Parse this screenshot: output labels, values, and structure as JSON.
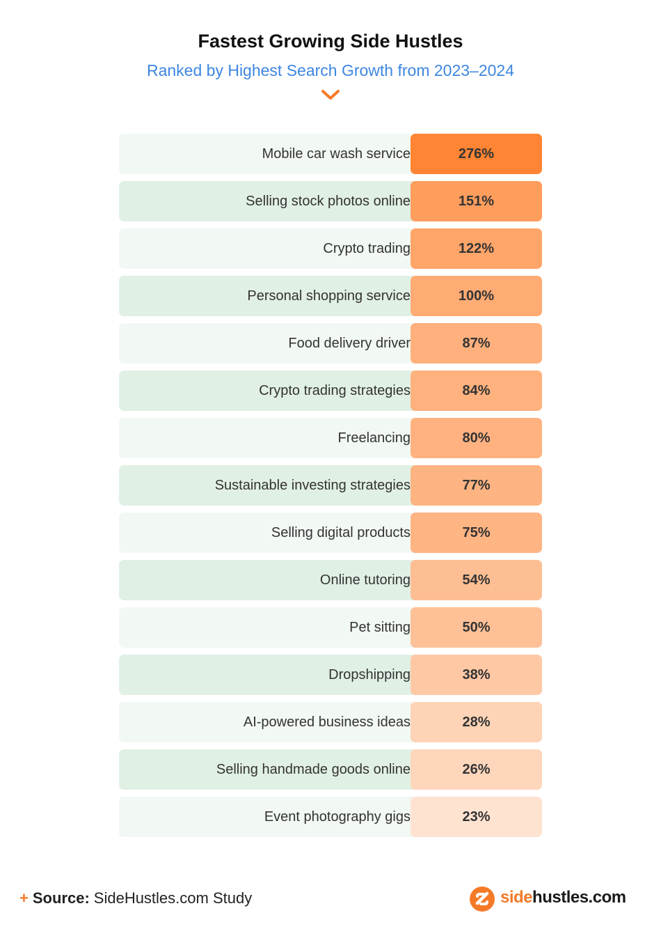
{
  "chart_data": {
    "type": "table",
    "title": "Fastest Growing Side Hustles",
    "subtitle": "Ranked by Highest Search Growth from 2023–2024",
    "categories": [
      "Mobile car wash service",
      "Selling stock photos online",
      "Crypto trading",
      "Personal shopping service",
      "Food delivery driver",
      "Crypto trading strategies",
      "Freelancing",
      "Sustainable investing strategies",
      "Selling digital products",
      "Online tutoring",
      "Pet sitting",
      "Dropshipping",
      "AI-powered business ideas",
      "Selling handmade goods online",
      "Event photography gigs"
    ],
    "values": [
      276,
      151,
      122,
      100,
      87,
      84,
      80,
      77,
      75,
      54,
      50,
      38,
      28,
      26,
      23
    ],
    "value_labels": [
      "276%",
      "151%",
      "122%",
      "100%",
      "87%",
      "84%",
      "80%",
      "77%",
      "75%",
      "54%",
      "50%",
      "38%",
      "28%",
      "26%",
      "23%"
    ],
    "unit": "%"
  },
  "colors": {
    "accent": "#f47a28",
    "subtitle": "#3d86e0",
    "row_light": "#f2f8f3",
    "row_dark": "#e1f0e4",
    "value_max": "#ff8433",
    "value_min": "#fee3d1"
  },
  "footer": {
    "source_label": "Source:",
    "source_text": "SideHustles.com Study",
    "brand_part1": "side",
    "brand_part2": "hustles.com",
    "brand_icon": "sidehustles-logo-icon"
  }
}
